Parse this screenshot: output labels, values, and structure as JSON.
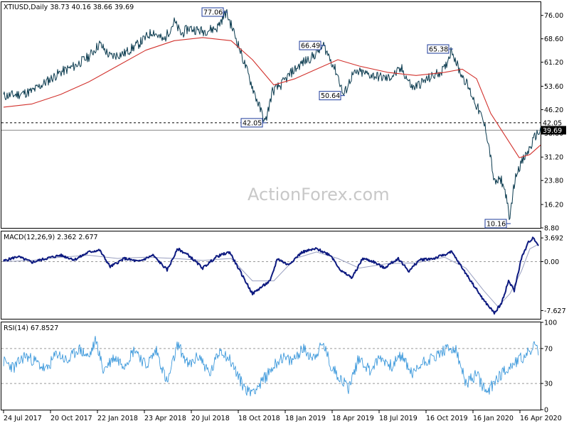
{
  "chart_data": [
    {
      "type": "line",
      "panel": "price",
      "title": "XTIUSD,Daily  38.73 40.16 38.66 39.69",
      "symbol": "XTIUSD",
      "timeframe": "Daily",
      "ohlc": {
        "open": 38.73,
        "high": 40.16,
        "low": 38.66,
        "close": 39.69
      },
      "ylim": [
        8.8,
        80.2
      ],
      "yticks": [
        "76.00",
        "68.60",
        "61.20",
        "53.60",
        "46.20",
        "38.80",
        "31.20",
        "23.80",
        "16.20",
        "8.80"
      ],
      "ytick_values": [
        76.0,
        68.6,
        61.2,
        53.6,
        46.2,
        38.8,
        31.2,
        23.8,
        16.2,
        8.8
      ],
      "series": [
        {
          "role": "price",
          "color": "#0b3b4f",
          "points": [
            [
              0,
              50.5
            ],
            [
              20,
              51
            ],
            [
              40,
              52
            ],
            [
              60,
              55
            ],
            [
              80,
              58
            ],
            [
              100,
              60
            ],
            [
              120,
              63
            ],
            [
              135,
              67
            ],
            [
              150,
              63
            ],
            [
              170,
              64
            ],
            [
              190,
              67
            ],
            [
              210,
              71
            ],
            [
              225,
              68
            ],
            [
              240,
              74
            ],
            [
              250,
              70
            ],
            [
              260,
              72
            ],
            [
              280,
              71
            ],
            [
              300,
              72
            ],
            [
              313,
              77.06
            ],
            [
              325,
              70
            ],
            [
              340,
              60
            ],
            [
              355,
              50
            ],
            [
              368,
              42.05
            ],
            [
              378,
              52
            ],
            [
              390,
              54
            ],
            [
              405,
              58
            ],
            [
              420,
              61
            ],
            [
              435,
              63
            ],
            [
              450,
              66.49
            ],
            [
              460,
              62
            ],
            [
              470,
              57
            ],
            [
              478,
              50.64
            ],
            [
              490,
              57
            ],
            [
              500,
              58
            ],
            [
              520,
              57
            ],
            [
              540,
              56
            ],
            [
              560,
              59
            ],
            [
              575,
              53
            ],
            [
              590,
              55
            ],
            [
              605,
              57
            ],
            [
              620,
              59
            ],
            [
              630,
              65.38
            ],
            [
              640,
              59
            ],
            [
              650,
              55
            ],
            [
              660,
              50
            ],
            [
              670,
              45
            ],
            [
              678,
              40
            ],
            [
              683,
              34
            ],
            [
              690,
              23
            ],
            [
              700,
              24
            ],
            [
              708,
              18
            ],
            [
              711,
              10.16
            ],
            [
              716,
              20
            ],
            [
              722,
              27
            ],
            [
              730,
              30
            ],
            [
              740,
              34
            ],
            [
              748,
              38
            ],
            [
              755,
              39.69
            ]
          ]
        },
        {
          "role": "moving-average",
          "color": "#d2322d",
          "points": [
            [
              0,
              47
            ],
            [
              40,
              48
            ],
            [
              80,
              51
            ],
            [
              120,
              55
            ],
            [
              160,
              60
            ],
            [
              200,
              65
            ],
            [
              240,
              68
            ],
            [
              280,
              69
            ],
            [
              320,
              68
            ],
            [
              350,
              62
            ],
            [
              380,
              54
            ],
            [
              410,
              56
            ],
            [
              440,
              59
            ],
            [
              470,
              62
            ],
            [
              500,
              60
            ],
            [
              540,
              58
            ],
            [
              580,
              57
            ],
            [
              620,
              58
            ],
            [
              645,
              59
            ],
            [
              665,
              56
            ],
            [
              685,
              45
            ],
            [
              705,
              38
            ],
            [
              725,
              31
            ],
            [
              740,
              32
            ],
            [
              755,
              35
            ]
          ]
        }
      ],
      "price_labels": [
        {
          "text": "77.06",
          "value": 77.06,
          "x": 313
        },
        {
          "text": "66.49",
          "value": 66.49,
          "x": 450
        },
        {
          "text": "65.38",
          "value": 65.38,
          "x": 630
        },
        {
          "text": "50.64",
          "value": 50.64,
          "x": 478
        },
        {
          "text": "42.05",
          "value": 42.05,
          "x": 368
        },
        {
          "text": "10.16",
          "value": 10.16,
          "x": 711
        }
      ],
      "horizontal_levels": [
        {
          "text": "42.05",
          "value": 42.05,
          "style": "dashed"
        },
        {
          "text": "39.69",
          "value": 39.69,
          "style": "solid"
        }
      ],
      "watermark": "ActionForex.com",
      "colors": {
        "price": "#0b3b4f",
        "ma": "#d2322d",
        "label_border": "#1c3a9a",
        "grid": "#9a9a9a"
      }
    },
    {
      "type": "line",
      "panel": "macd",
      "title": "MACD(12,26,9) 2.362 2.677",
      "indicator": "MACD(12,26,9)",
      "values_shown": {
        "macd": 2.362,
        "signal": 2.677
      },
      "ylim": [
        -8.9,
        4.7
      ],
      "yticks": [
        "3.692",
        "0.00",
        "-7.627"
      ],
      "ytick_values": [
        3.692,
        0.0,
        -7.627
      ],
      "series": [
        {
          "role": "macd",
          "color": "#0d1a80",
          "points": [
            [
              0,
              0.1
            ],
            [
              20,
              0.8
            ],
            [
              40,
              -0.1
            ],
            [
              60,
              0.5
            ],
            [
              80,
              1.0
            ],
            [
              100,
              0.3
            ],
            [
              120,
              1.5
            ],
            [
              135,
              1.8
            ],
            [
              150,
              -0.8
            ],
            [
              170,
              0.5
            ],
            [
              190,
              0.0
            ],
            [
              210,
              1.0
            ],
            [
              230,
              -1.3
            ],
            [
              245,
              2.0
            ],
            [
              260,
              1.0
            ],
            [
              280,
              -1.0
            ],
            [
              300,
              0.8
            ],
            [
              318,
              1.5
            ],
            [
              330,
              -1.0
            ],
            [
              350,
              -5.0
            ],
            [
              362,
              -4.0
            ],
            [
              375,
              -3.0
            ],
            [
              385,
              0.5
            ],
            [
              400,
              -0.5
            ],
            [
              420,
              1.5
            ],
            [
              440,
              2.0
            ],
            [
              460,
              1.0
            ],
            [
              475,
              -1.5
            ],
            [
              490,
              -2.5
            ],
            [
              505,
              0.5
            ],
            [
              520,
              0.0
            ],
            [
              535,
              -1.0
            ],
            [
              555,
              0.5
            ],
            [
              570,
              -1.5
            ],
            [
              585,
              0.3
            ],
            [
              605,
              0.5
            ],
            [
              630,
              1.5
            ],
            [
              645,
              -1.0
            ],
            [
              660,
              -3.5
            ],
            [
              675,
              -6.0
            ],
            [
              690,
              -8.0
            ],
            [
              700,
              -6.5
            ],
            [
              710,
              -3.0
            ],
            [
              718,
              -4.5
            ],
            [
              728,
              0.5
            ],
            [
              738,
              3.0
            ],
            [
              745,
              3.8
            ],
            [
              752,
              2.5
            ]
          ]
        },
        {
          "role": "signal",
          "color": "#9aa0c0",
          "points": [
            [
              0,
              0.0
            ],
            [
              40,
              0.2
            ],
            [
              80,
              0.7
            ],
            [
              120,
              1.0
            ],
            [
              160,
              0.5
            ],
            [
              200,
              0.7
            ],
            [
              240,
              0.5
            ],
            [
              280,
              0.2
            ],
            [
              320,
              0.5
            ],
            [
              350,
              -3.0
            ],
            [
              380,
              -3.0
            ],
            [
              410,
              0.5
            ],
            [
              440,
              1.5
            ],
            [
              470,
              0.5
            ],
            [
              500,
              -1.0
            ],
            [
              540,
              -0.3
            ],
            [
              580,
              -0.2
            ],
            [
              620,
              0.7
            ],
            [
              650,
              -1.0
            ],
            [
              675,
              -4.5
            ],
            [
              695,
              -7.0
            ],
            [
              712,
              -5.0
            ],
            [
              728,
              -1.5
            ],
            [
              740,
              2.0
            ],
            [
              752,
              2.7
            ]
          ]
        }
      ]
    },
    {
      "type": "line",
      "panel": "rsi",
      "title": "RSI(14) 67.8527",
      "indicator": "RSI(14)",
      "value_shown": 67.8527,
      "ylim": [
        0,
        100
      ],
      "yticks": [
        "100",
        "70",
        "30",
        "0"
      ],
      "ytick_values": [
        100,
        70,
        30,
        0
      ],
      "levels": [
        70,
        30
      ],
      "series": [
        {
          "role": "rsi",
          "color": "#2a8fd8",
          "points": [
            [
              0,
              55
            ],
            [
              15,
              48
            ],
            [
              30,
              62
            ],
            [
              45,
              55
            ],
            [
              60,
              45
            ],
            [
              75,
              65
            ],
            [
              90,
              55
            ],
            [
              105,
              70
            ],
            [
              120,
              60
            ],
            [
              130,
              80
            ],
            [
              140,
              45
            ],
            [
              155,
              60
            ],
            [
              170,
              52
            ],
            [
              185,
              70
            ],
            [
              200,
              50
            ],
            [
              215,
              68
            ],
            [
              230,
              30
            ],
            [
              245,
              75
            ],
            [
              260,
              50
            ],
            [
              275,
              62
            ],
            [
              290,
              40
            ],
            [
              305,
              70
            ],
            [
              320,
              55
            ],
            [
              335,
              30
            ],
            [
              345,
              20
            ],
            [
              360,
              28
            ],
            [
              375,
              45
            ],
            [
              390,
              60
            ],
            [
              405,
              55
            ],
            [
              420,
              70
            ],
            [
              435,
              60
            ],
            [
              450,
              75
            ],
            [
              460,
              50
            ],
            [
              475,
              35
            ],
            [
              485,
              25
            ],
            [
              500,
              60
            ],
            [
              515,
              45
            ],
            [
              530,
              60
            ],
            [
              545,
              50
            ],
            [
              560,
              62
            ],
            [
              575,
              40
            ],
            [
              590,
              55
            ],
            [
              605,
              60
            ],
            [
              620,
              68
            ],
            [
              635,
              70
            ],
            [
              650,
              30
            ],
            [
              665,
              40
            ],
            [
              680,
              18
            ],
            [
              692,
              35
            ],
            [
              705,
              45
            ],
            [
              720,
              55
            ],
            [
              735,
              62
            ],
            [
              745,
              72
            ],
            [
              752,
              68
            ]
          ]
        }
      ],
      "colors": {
        "rsi": "#2a8fd8",
        "level": "#9a9a9a"
      }
    }
  ],
  "x_axis": {
    "tick_labels": [
      "24 Jul 2017",
      "20 Oct 2017",
      "22 Jan 2018",
      "23 Apr 2018",
      "20 Jul 2018",
      "18 Oct 2018",
      "18 Jan 2019",
      "18 Apr 2019",
      "18 Jul 2019",
      "16 Oct 2019",
      "16 Jan 2020",
      "16 Apr 2020"
    ],
    "tick_index": [
      0,
      66,
      132,
      198,
      264,
      330,
      396,
      462,
      528,
      594,
      660,
      726
    ]
  }
}
